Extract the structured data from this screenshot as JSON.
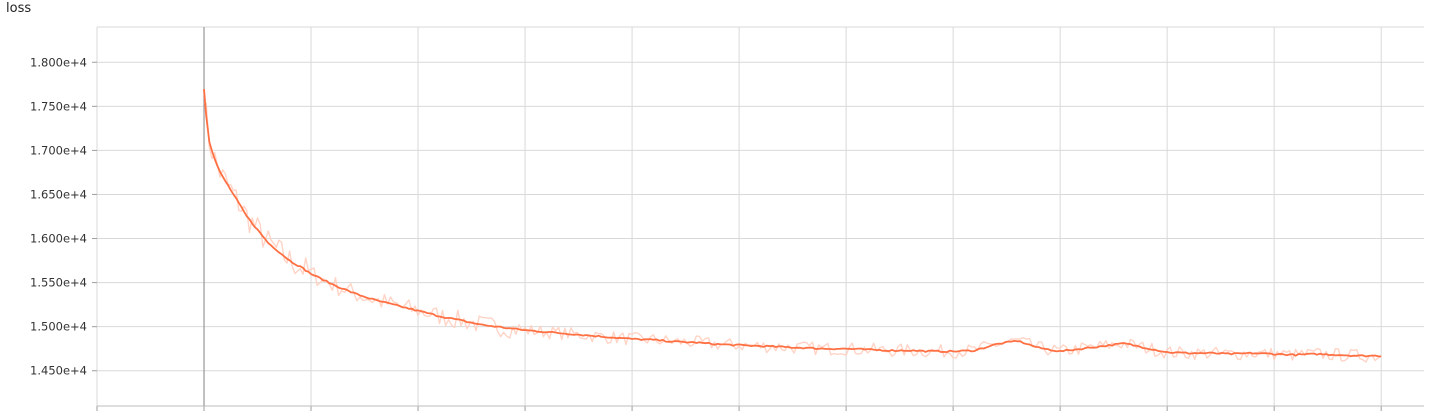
{
  "chart_data": {
    "type": "line",
    "title": "loss",
    "xlabel": "",
    "ylabel": "",
    "grid": true,
    "ylim": [
      14100,
      18400
    ],
    "xlim": [
      -1,
      11.4
    ],
    "y_ticks": [
      {
        "value": 18000,
        "label": "1.800e+4"
      },
      {
        "value": 17500,
        "label": "1.750e+4"
      },
      {
        "value": 17000,
        "label": "1.700e+4"
      },
      {
        "value": 16500,
        "label": "1.650e+4"
      },
      {
        "value": 16000,
        "label": "1.600e+4"
      },
      {
        "value": 15500,
        "label": "1.550e+4"
      },
      {
        "value": 15000,
        "label": "1.500e+4"
      },
      {
        "value": 14500,
        "label": "1.450e+4"
      }
    ],
    "x_gridlines": [
      -1,
      0,
      1,
      2,
      3,
      4,
      5,
      6,
      7,
      8,
      9,
      10,
      11
    ],
    "colors": {
      "smoothed": "#ff7043",
      "raw": "#ffccbc",
      "axis_marker": "#9e9e9e",
      "grid": "#d9d9d9"
    },
    "series": [
      {
        "x": [
          0,
          0.02,
          0.05,
          0.1,
          0.15,
          0.2,
          0.3,
          0.4,
          0.5,
          0.6,
          0.7,
          0.8,
          0.9,
          1.0,
          1.2,
          1.4,
          1.6,
          1.8,
          2.0,
          2.2,
          2.4,
          2.6,
          2.8,
          3.0,
          3.2,
          3.4,
          3.6,
          3.8,
          4.0,
          4.2,
          4.4,
          4.6,
          4.8,
          5.0,
          5.2,
          5.4,
          5.6,
          5.8,
          6.0,
          6.2,
          6.4,
          6.6,
          6.8,
          7.0,
          7.2,
          7.4,
          7.6,
          7.8,
          8.0,
          8.2,
          8.4,
          8.6,
          8.8,
          9.0,
          9.2,
          9.4,
          9.6,
          9.8,
          10.0,
          10.2,
          10.4,
          10.6,
          10.8,
          11.0
        ],
        "values": [
          17700,
          17400,
          17100,
          16900,
          16750,
          16650,
          16450,
          16250,
          16100,
          15950,
          15850,
          15750,
          15680,
          15600,
          15480,
          15380,
          15300,
          15240,
          15180,
          15120,
          15070,
          15020,
          14990,
          14960,
          14940,
          14920,
          14900,
          14880,
          14860,
          14850,
          14830,
          14820,
          14800,
          14790,
          14780,
          14770,
          14760,
          14750,
          14750,
          14740,
          14730,
          14730,
          14720,
          14720,
          14730,
          14800,
          14840,
          14760,
          14720,
          14750,
          14780,
          14810,
          14760,
          14710,
          14700,
          14700,
          14690,
          14700,
          14690,
          14680,
          14690,
          14680,
          14670,
          14670
        ]
      }
    ]
  }
}
